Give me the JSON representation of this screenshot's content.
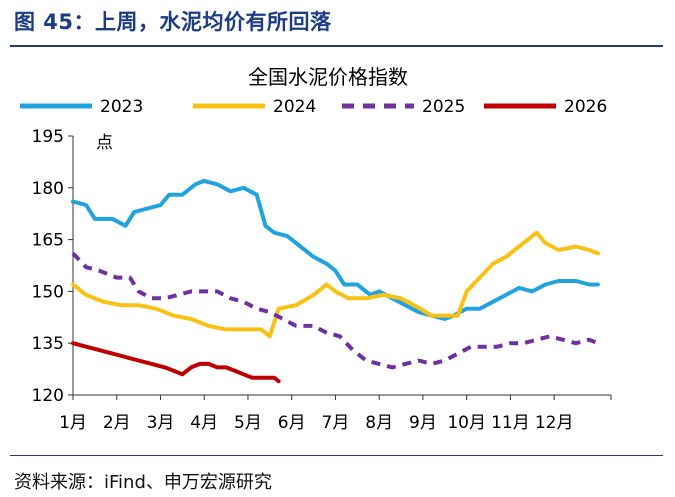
{
  "figure_title": "图 45：上周，水泥均价有所回落",
  "source": "资料来源：iFind、申万宏源研究",
  "colors": {
    "header": "#1d3c83",
    "s2023": "#21a3df",
    "s2024": "#f8c114",
    "s2025": "#7030a0",
    "s2026": "#c00000"
  },
  "chart_data": {
    "type": "line",
    "title": "全国水泥价格指数",
    "ylabel": "点",
    "ylim": [
      120,
      195
    ],
    "yticks": [
      120,
      135,
      150,
      165,
      180,
      195
    ],
    "xlim": [
      1,
      13.3
    ],
    "xticks": [
      1,
      2,
      3,
      4,
      5,
      6,
      7,
      8,
      9,
      10,
      11,
      12
    ],
    "xticklabels": [
      "1月",
      "2月",
      "3月",
      "4月",
      "5月",
      "6月",
      "7月",
      "8月",
      "9月",
      "10月",
      "11月",
      "12月"
    ],
    "legend_position": "top",
    "series": [
      {
        "name": "2023",
        "style": "solid",
        "x": [
          1,
          1.3,
          1.5,
          1.9,
          2.2,
          2.4,
          2.7,
          3.0,
          3.2,
          3.5,
          3.8,
          4.0,
          4.3,
          4.6,
          4.9,
          5.2,
          5.4,
          5.6,
          5.9,
          6.2,
          6.5,
          6.8,
          7.0,
          7.2,
          7.5,
          7.8,
          8.0,
          8.3,
          8.6,
          8.9,
          9.2,
          9.5,
          9.7,
          10.0,
          10.3,
          10.6,
          10.9,
          11.2,
          11.5,
          11.8,
          12.1,
          12.5,
          12.8,
          13.0
        ],
        "values": [
          176,
          175,
          171,
          171,
          169,
          173,
          174,
          175,
          178,
          178,
          181,
          182,
          181,
          179,
          180,
          178,
          169,
          167,
          166,
          163,
          160,
          158,
          156,
          152,
          152,
          149,
          150,
          148,
          146,
          144,
          143,
          142,
          143,
          145,
          145,
          147,
          149,
          151,
          150,
          152,
          153,
          153,
          152,
          152
        ]
      },
      {
        "name": "2024",
        "style": "solid",
        "x": [
          1,
          1.3,
          1.7,
          2.1,
          2.5,
          2.9,
          3.3,
          3.7,
          4.1,
          4.5,
          4.9,
          5.3,
          5.5,
          5.7,
          6.1,
          6.5,
          6.8,
          7.0,
          7.3,
          7.7,
          8.1,
          8.5,
          8.8,
          9.2,
          9.6,
          9.8,
          10.0,
          10.3,
          10.6,
          10.9,
          11.2,
          11.4,
          11.6,
          11.8,
          12.1,
          12.5,
          12.8,
          13.0
        ],
        "values": [
          152,
          149,
          147,
          146,
          146,
          145,
          143,
          142,
          140,
          139,
          139,
          139,
          137,
          145,
          146,
          149,
          152,
          150,
          148,
          148,
          149,
          148,
          146,
          143,
          143,
          143,
          150,
          154,
          158,
          160,
          163,
          165,
          167,
          164,
          162,
          163,
          162,
          161
        ]
      },
      {
        "name": "2025",
        "style": "dashed",
        "x": [
          1,
          1.3,
          1.6,
          2.0,
          2.3,
          2.5,
          2.8,
          3.1,
          3.4,
          3.7,
          4.0,
          4.3,
          4.6,
          4.9,
          5.2,
          5.5,
          5.8,
          6.1,
          6.5,
          6.8,
          7.1,
          7.4,
          7.7,
          8.0,
          8.3,
          8.6,
          8.9,
          9.2,
          9.5,
          9.8,
          10.1,
          10.4,
          10.7,
          11.0,
          11.3,
          11.6,
          11.9,
          12.2,
          12.5,
          12.8,
          13.0
        ],
        "values": [
          161,
          157,
          156,
          154,
          154,
          150,
          148,
          148,
          149,
          150,
          150,
          150,
          148,
          147,
          145,
          144,
          142,
          140,
          140,
          138,
          137,
          133,
          130,
          129,
          128,
          129,
          130,
          129,
          130,
          132,
          134,
          134,
          134,
          135,
          135,
          136,
          137,
          136,
          135,
          136,
          135
        ]
      },
      {
        "name": "2026",
        "style": "solid",
        "x": [
          1,
          1.3,
          1.6,
          1.9,
          2.2,
          2.5,
          2.8,
          3.1,
          3.3,
          3.5,
          3.7,
          3.9,
          4.1,
          4.3,
          4.5,
          4.7,
          4.9,
          5.1,
          5.3,
          5.5,
          5.6,
          5.7
        ],
        "values": [
          135,
          134,
          133,
          132,
          131,
          130,
          129,
          128,
          127,
          126,
          128,
          129,
          129,
          128,
          128,
          127,
          126,
          125,
          125,
          125,
          125,
          124
        ]
      }
    ]
  }
}
